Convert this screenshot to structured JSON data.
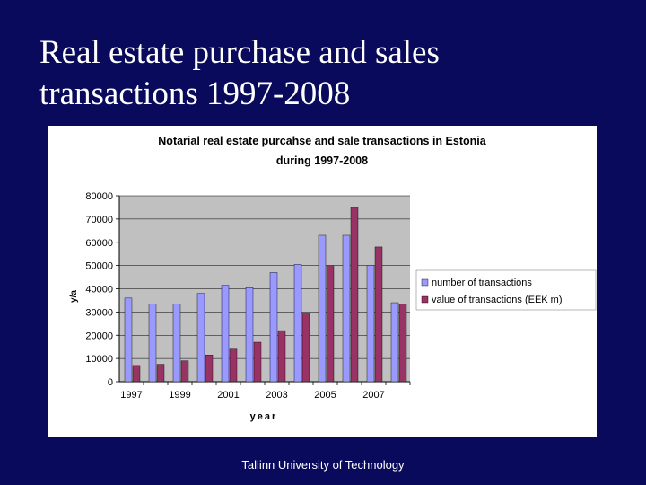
{
  "slide": {
    "title_line1": "Real estate purchase and sales",
    "title_line2": "transactions 1997-2008",
    "footer": "Tallinn University of Technology"
  },
  "colors": {
    "background": "#0a0a5c",
    "plot_area": "#c0c0c0",
    "series_transactions": "#9999ff",
    "series_value": "#993366"
  },
  "chart_data": {
    "type": "bar",
    "title_line1": "Notarial real estate purcahse and sale transactions in Estonia",
    "title_line2": "during 1997-2008",
    "xlabel": "year",
    "ylabel": "y/a",
    "ylim": [
      0,
      80000
    ],
    "yticks": [
      0,
      10000,
      20000,
      30000,
      40000,
      50000,
      60000,
      70000,
      80000
    ],
    "categories": [
      "1997",
      "1998",
      "1999",
      "2000",
      "2001",
      "2002",
      "2003",
      "2004",
      "2005",
      "2006",
      "2007",
      "2008"
    ],
    "x_tick_labels": [
      "1997",
      "",
      "1999",
      "",
      "2001",
      "",
      "2003",
      "",
      "2005",
      "",
      "2007",
      ""
    ],
    "grid": "horizontal",
    "legend_position": "right",
    "series": [
      {
        "name": "number of transactions",
        "color": "#9999ff",
        "values": [
          36000,
          33500,
          33500,
          38000,
          41500,
          40500,
          47000,
          50500,
          63000,
          63000,
          50000,
          34000
        ]
      },
      {
        "name": "value of transactions (EEK m)",
        "color": "#993366",
        "values": [
          7000,
          7500,
          9000,
          11500,
          14000,
          17000,
          22000,
          29500,
          50000,
          75000,
          58000,
          33500
        ]
      }
    ]
  }
}
